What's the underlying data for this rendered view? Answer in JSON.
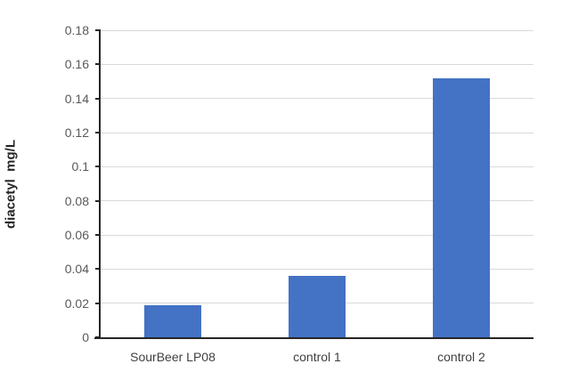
{
  "chart_data": {
    "type": "bar",
    "categories": [
      "SourBeer LP08",
      "control 1",
      "control 2"
    ],
    "values": [
      0.019,
      0.036,
      0.152
    ],
    "title": "",
    "xlabel": "",
    "ylabel": "diacetyl  mg/L",
    "ylim": [
      0,
      0.18
    ],
    "ytick_step": 0.02,
    "ytick_labels": [
      "0",
      "0.02",
      "0.04",
      "0.06",
      "0.08",
      "0.1",
      "0.12",
      "0.14",
      "0.16",
      "0.18"
    ],
    "grid": true,
    "legend": false,
    "colors": {
      "bar": "#4472c4",
      "gridline": "#d9d9d9",
      "axis": "#262626",
      "ytick_label": "#595959",
      "category_label": "#404040",
      "background": "#ffffff"
    }
  }
}
